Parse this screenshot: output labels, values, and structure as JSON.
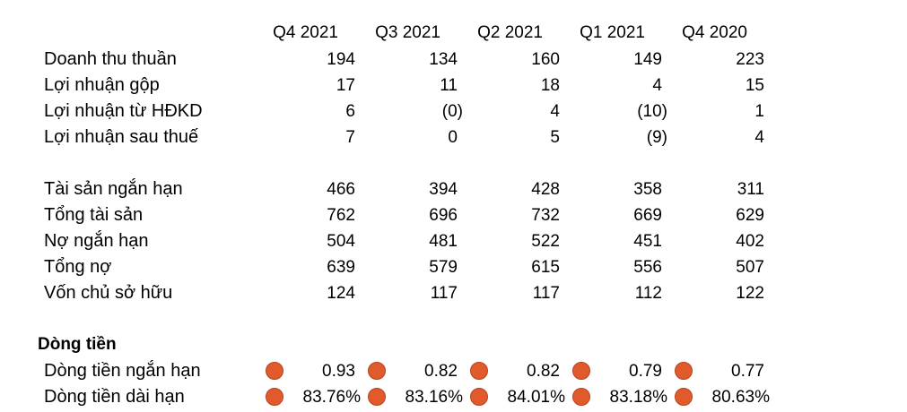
{
  "columns": [
    "Q4 2021",
    "Q3 2021",
    "Q2 2021",
    "Q1 2021",
    "Q4 2020"
  ],
  "income": [
    {
      "label": "Doanh thu thuần",
      "values": [
        "194",
        "134",
        "160",
        "149",
        "223"
      ]
    },
    {
      "label": "Lợi nhuận gộp",
      "values": [
        "17",
        "11",
        "18",
        "4",
        "15"
      ]
    },
    {
      "label": "Lợi nhuận từ HĐKD",
      "values": [
        "6",
        "(0)",
        "4",
        "(10)",
        "1"
      ]
    },
    {
      "label": "Lợi nhuận sau thuế",
      "values": [
        "7",
        "0",
        "5",
        "(9)",
        "4"
      ]
    }
  ],
  "balance": [
    {
      "label": "Tài sản ngắn hạn",
      "values": [
        "466",
        "394",
        "428",
        "358",
        "311"
      ]
    },
    {
      "label": "Tổng tài sản",
      "values": [
        "762",
        "696",
        "732",
        "669",
        "629"
      ]
    },
    {
      "label": "Nợ ngắn hạn",
      "values": [
        "504",
        "481",
        "522",
        "451",
        "402"
      ]
    },
    {
      "label": "Tổng nợ",
      "values": [
        "639",
        "579",
        "615",
        "556",
        "507"
      ]
    },
    {
      "label": "Vốn chủ sở hữu",
      "values": [
        "124",
        "117",
        "117",
        "112",
        "122"
      ]
    }
  ],
  "cashflow": {
    "title": "Dòng tiền",
    "indicator_color": "#e05a2b",
    "rows": [
      {
        "label": "Dòng tiền ngắn hạn",
        "values": [
          "0.93",
          "0.82",
          "0.82",
          "0.79",
          "0.77"
        ]
      },
      {
        "label": "Dòng tiền dài hạn",
        "values": [
          "83.76%",
          "83.16%",
          "84.01%",
          "83.18%",
          "80.63%"
        ]
      }
    ]
  }
}
